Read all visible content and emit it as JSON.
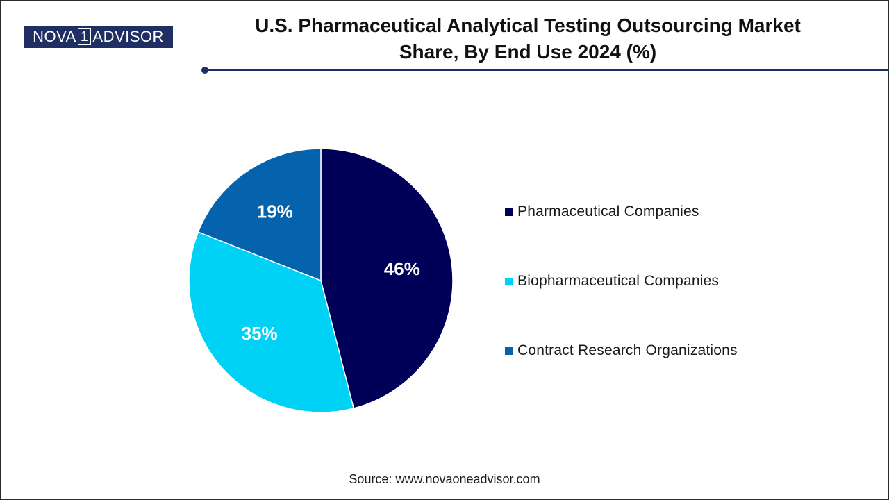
{
  "brand": {
    "logo_left": "NOVA",
    "logo_one": "1",
    "logo_right": "ADVISOR",
    "color": "#1f2f63"
  },
  "title_line1": "U.S. Pharmaceutical Analytical Testing Outsourcing Market",
  "title_line2": "Share, By End Use 2024 (%)",
  "source": "Source: www.novaoneadvisor.com",
  "chart_data": {
    "type": "pie",
    "title": "U.S. Pharmaceutical Analytical Testing Outsourcing Market Share, By End Use 2024 (%)",
    "start_angle_deg": 0,
    "direction": "clockwise",
    "legend_position": "right",
    "slices": [
      {
        "label": "Pharmaceutical Companies",
        "value": 46,
        "display": "46%",
        "color": "#000058"
      },
      {
        "label": "Biopharmaceutical Companies",
        "value": 35,
        "display": "35%",
        "color": "#00d2f5"
      },
      {
        "label": "Contract Research Organizations",
        "value": 19,
        "display": "19%",
        "color": "#0563ad"
      }
    ]
  }
}
